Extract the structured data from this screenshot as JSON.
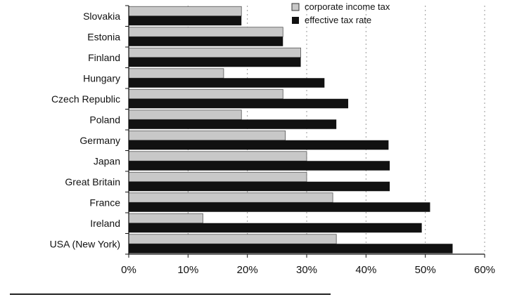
{
  "chart_data": {
    "type": "bar",
    "orientation": "horizontal",
    "categories": [
      "Slovakia",
      "Estonia",
      "Finland",
      "Hungary",
      "Czech Republic",
      "Poland",
      "Germany",
      "Japan",
      "Great Britain",
      "France",
      "Ireland",
      "USA (New York)"
    ],
    "series": [
      {
        "name": "corporate income tax",
        "color": "#c8c8c8",
        "values": [
          19,
          26,
          29,
          16,
          26,
          19,
          26.4,
          30,
          30,
          34.4,
          12.5,
          35
        ]
      },
      {
        "name": "effective tax rate",
        "color": "#111111",
        "values": [
          19,
          26,
          29,
          33,
          37,
          35,
          43.8,
          44,
          44,
          50.8,
          49.4,
          54.6
        ]
      }
    ],
    "xlim": [
      0,
      60
    ],
    "x_ticks": [
      0,
      10,
      20,
      30,
      40,
      50,
      60
    ],
    "x_tick_labels": [
      "0%",
      "10%",
      "20%",
      "30%",
      "40%",
      "50%",
      "60%"
    ],
    "grid": "vertical dashed",
    "legend_position": "top-right",
    "title": "",
    "xlabel": "",
    "ylabel": ""
  }
}
